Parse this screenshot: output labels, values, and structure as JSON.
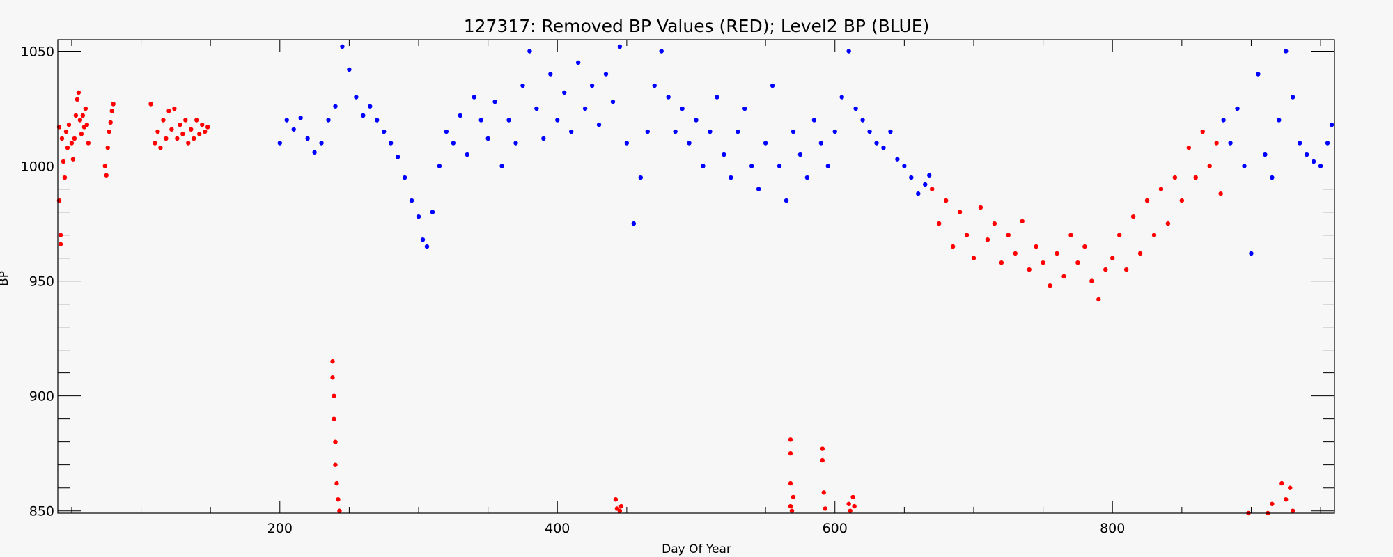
{
  "chart_data": {
    "type": "scatter",
    "title": "127317: Removed BP Values (RED); Level2 BP (BLUE)",
    "xlabel": "Day Of Year",
    "ylabel": "BP",
    "xlim": [
      40,
      960
    ],
    "ylim": [
      849,
      1055
    ],
    "x_ticks": [
      200,
      400,
      600,
      800
    ],
    "y_ticks": [
      850,
      900,
      950,
      1000,
      1050
    ],
    "x_minor_step": 50,
    "y_minor_step": 10,
    "grid": false,
    "colors": {
      "removed": "#ff0000",
      "level2": "#0000ff"
    },
    "series": [
      {
        "key": "removed",
        "color": "#ff0000",
        "points": [
          [
            41,
            1017
          ],
          [
            41,
            985
          ],
          [
            42,
            970
          ],
          [
            42,
            966
          ],
          [
            43,
            1012
          ],
          [
            44,
            1002
          ],
          [
            45,
            995
          ],
          [
            46,
            1015
          ],
          [
            47,
            1008
          ],
          [
            48,
            1018
          ],
          [
            50,
            1010
          ],
          [
            51,
            1003
          ],
          [
            52,
            1012
          ],
          [
            53,
            1022
          ],
          [
            54,
            1029
          ],
          [
            55,
            1032
          ],
          [
            56,
            1020
          ],
          [
            57,
            1014
          ],
          [
            58,
            1022
          ],
          [
            59,
            1017
          ],
          [
            60,
            1025
          ],
          [
            61,
            1018
          ],
          [
            62,
            1010
          ],
          [
            74,
            1000
          ],
          [
            75,
            996
          ],
          [
            76,
            1008
          ],
          [
            77,
            1015
          ],
          [
            78,
            1019
          ],
          [
            79,
            1024
          ],
          [
            80,
            1027
          ],
          [
            107,
            1027
          ],
          [
            110,
            1010
          ],
          [
            112,
            1015
          ],
          [
            114,
            1008
          ],
          [
            116,
            1020
          ],
          [
            118,
            1012
          ],
          [
            120,
            1024
          ],
          [
            122,
            1016
          ],
          [
            124,
            1025
          ],
          [
            126,
            1012
          ],
          [
            128,
            1018
          ],
          [
            130,
            1014
          ],
          [
            132,
            1020
          ],
          [
            134,
            1010
          ],
          [
            136,
            1016
          ],
          [
            138,
            1012
          ],
          [
            140,
            1020
          ],
          [
            142,
            1014
          ],
          [
            144,
            1018
          ],
          [
            146,
            1015
          ],
          [
            148,
            1017
          ],
          [
            238,
            915
          ],
          [
            238,
            908
          ],
          [
            239,
            900
          ],
          [
            239,
            890
          ],
          [
            240,
            880
          ],
          [
            240,
            870
          ],
          [
            241,
            862
          ],
          [
            242,
            855
          ],
          [
            243,
            850
          ],
          [
            442,
            855
          ],
          [
            443,
            851
          ],
          [
            445,
            850
          ],
          [
            446,
            852
          ],
          [
            568,
            881
          ],
          [
            568,
            875
          ],
          [
            568,
            862
          ],
          [
            568,
            852
          ],
          [
            569,
            850
          ],
          [
            570,
            856
          ],
          [
            591,
            877
          ],
          [
            591,
            872
          ],
          [
            592,
            858
          ],
          [
            593,
            851
          ],
          [
            610,
            853
          ],
          [
            611,
            850
          ],
          [
            613,
            856
          ],
          [
            614,
            852
          ],
          [
            670,
            990
          ],
          [
            675,
            975
          ],
          [
            680,
            985
          ],
          [
            685,
            965
          ],
          [
            690,
            980
          ],
          [
            695,
            970
          ],
          [
            700,
            960
          ],
          [
            705,
            982
          ],
          [
            710,
            968
          ],
          [
            715,
            975
          ],
          [
            720,
            958
          ],
          [
            725,
            970
          ],
          [
            730,
            962
          ],
          [
            735,
            976
          ],
          [
            740,
            955
          ],
          [
            745,
            965
          ],
          [
            750,
            958
          ],
          [
            755,
            948
          ],
          [
            760,
            962
          ],
          [
            765,
            952
          ],
          [
            770,
            970
          ],
          [
            775,
            958
          ],
          [
            780,
            965
          ],
          [
            785,
            950
          ],
          [
            790,
            942
          ],
          [
            795,
            955
          ],
          [
            800,
            960
          ],
          [
            805,
            970
          ],
          [
            810,
            955
          ],
          [
            815,
            978
          ],
          [
            820,
            962
          ],
          [
            825,
            985
          ],
          [
            830,
            970
          ],
          [
            835,
            990
          ],
          [
            840,
            975
          ],
          [
            845,
            995
          ],
          [
            850,
            985
          ],
          [
            855,
            1008
          ],
          [
            860,
            995
          ],
          [
            865,
            1015
          ],
          [
            870,
            1000
          ],
          [
            875,
            1010
          ],
          [
            878,
            988
          ],
          [
            898,
            849
          ],
          [
            912,
            849
          ],
          [
            915,
            853
          ],
          [
            922,
            862
          ],
          [
            925,
            855
          ],
          [
            928,
            860
          ],
          [
            930,
            850
          ]
        ]
      },
      {
        "key": "level2",
        "color": "#0000ff",
        "points": [
          [
            200,
            1010
          ],
          [
            205,
            1020
          ],
          [
            210,
            1016
          ],
          [
            215,
            1021
          ],
          [
            220,
            1012
          ],
          [
            225,
            1006
          ],
          [
            230,
            1010
          ],
          [
            235,
            1020
          ],
          [
            240,
            1026
          ],
          [
            245,
            1052
          ],
          [
            250,
            1042
          ],
          [
            255,
            1030
          ],
          [
            260,
            1022
          ],
          [
            265,
            1026
          ],
          [
            270,
            1020
          ],
          [
            275,
            1015
          ],
          [
            280,
            1010
          ],
          [
            285,
            1004
          ],
          [
            290,
            995
          ],
          [
            295,
            985
          ],
          [
            300,
            978
          ],
          [
            303,
            968
          ],
          [
            306,
            965
          ],
          [
            310,
            980
          ],
          [
            315,
            1000
          ],
          [
            320,
            1015
          ],
          [
            325,
            1010
          ],
          [
            330,
            1022
          ],
          [
            335,
            1005
          ],
          [
            340,
            1030
          ],
          [
            345,
            1020
          ],
          [
            350,
            1012
          ],
          [
            355,
            1028
          ],
          [
            360,
            1000
          ],
          [
            365,
            1020
          ],
          [
            370,
            1010
          ],
          [
            375,
            1035
          ],
          [
            380,
            1050
          ],
          [
            385,
            1025
          ],
          [
            390,
            1012
          ],
          [
            395,
            1040
          ],
          [
            400,
            1020
          ],
          [
            405,
            1032
          ],
          [
            410,
            1015
          ],
          [
            415,
            1045
          ],
          [
            420,
            1025
          ],
          [
            425,
            1035
          ],
          [
            430,
            1018
          ],
          [
            435,
            1040
          ],
          [
            440,
            1028
          ],
          [
            445,
            1052
          ],
          [
            450,
            1010
          ],
          [
            455,
            975
          ],
          [
            460,
            995
          ],
          [
            465,
            1015
          ],
          [
            470,
            1035
          ],
          [
            475,
            1050
          ],
          [
            480,
            1030
          ],
          [
            485,
            1015
          ],
          [
            490,
            1025
          ],
          [
            495,
            1010
          ],
          [
            500,
            1020
          ],
          [
            505,
            1000
          ],
          [
            510,
            1015
          ],
          [
            515,
            1030
          ],
          [
            520,
            1005
          ],
          [
            525,
            995
          ],
          [
            530,
            1015
          ],
          [
            535,
            1025
          ],
          [
            540,
            1000
          ],
          [
            545,
            990
          ],
          [
            550,
            1010
          ],
          [
            555,
            1035
          ],
          [
            560,
            1000
          ],
          [
            565,
            985
          ],
          [
            570,
            1015
          ],
          [
            575,
            1005
          ],
          [
            580,
            995
          ],
          [
            585,
            1020
          ],
          [
            590,
            1010
          ],
          [
            595,
            1000
          ],
          [
            600,
            1015
          ],
          [
            605,
            1030
          ],
          [
            610,
            1050
          ],
          [
            615,
            1025
          ],
          [
            620,
            1020
          ],
          [
            625,
            1015
          ],
          [
            630,
            1010
          ],
          [
            635,
            1008
          ],
          [
            640,
            1015
          ],
          [
            645,
            1003
          ],
          [
            650,
            1000
          ],
          [
            655,
            995
          ],
          [
            660,
            988
          ],
          [
            665,
            992
          ],
          [
            668,
            996
          ],
          [
            880,
            1020
          ],
          [
            885,
            1010
          ],
          [
            890,
            1025
          ],
          [
            895,
            1000
          ],
          [
            900,
            962
          ],
          [
            905,
            1040
          ],
          [
            910,
            1005
          ],
          [
            915,
            995
          ],
          [
            920,
            1020
          ],
          [
            925,
            1050
          ],
          [
            930,
            1030
          ],
          [
            935,
            1010
          ],
          [
            940,
            1005
          ],
          [
            945,
            1002
          ],
          [
            950,
            1000
          ],
          [
            955,
            1010
          ],
          [
            958,
            1018
          ]
        ]
      }
    ]
  }
}
